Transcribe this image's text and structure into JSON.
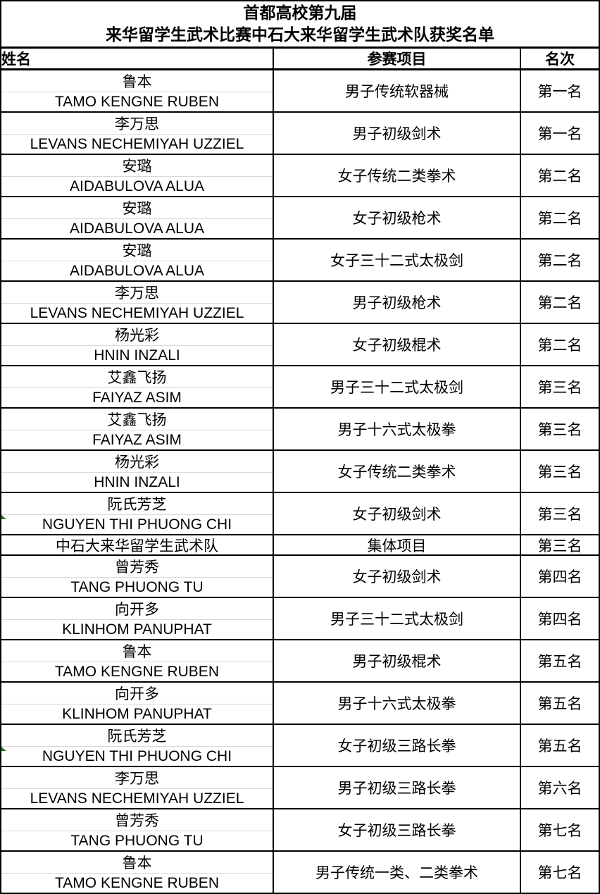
{
  "table": {
    "title_line1": "首都高校第九届",
    "title_line2": "来华留学生武术比赛中石大来华留学生武术队获奖名单",
    "columns": {
      "name": "姓名",
      "event": "参赛项目",
      "rank": "名次"
    },
    "rows": [
      {
        "name_cn": "鲁本",
        "name_en": "TAMO KENGNE RUBEN",
        "event": "男子传统软器械",
        "rank": "第一名"
      },
      {
        "name_cn": "李万思",
        "name_en": "LEVANS NECHEMIYAH UZZIEL",
        "event": "男子初级剑术",
        "rank": "第一名"
      },
      {
        "name_cn": "安璐",
        "name_en": "AIDABULOVA ALUA",
        "event": "女子传统二类拳术",
        "rank": "第二名"
      },
      {
        "name_cn": "安璐",
        "name_en": "AIDABULOVA ALUA",
        "event": "女子初级枪术",
        "rank": "第二名"
      },
      {
        "name_cn": "安璐",
        "name_en": "AIDABULOVA ALUA",
        "event": "女子三十二式太极剑",
        "rank": "第二名"
      },
      {
        "name_cn": "李万思",
        "name_en": "LEVANS NECHEMIYAH UZZIEL",
        "event": "男子初级枪术",
        "rank": "第二名"
      },
      {
        "name_cn": "杨光彩",
        "name_en": "HNIN INZALI",
        "event": "女子初级棍术",
        "rank": "第二名"
      },
      {
        "name_cn": "艾鑫飞扬",
        "name_en": "FAIYAZ ASIM",
        "event": "男子三十二式太极剑",
        "rank": "第三名"
      },
      {
        "name_cn": "艾鑫飞扬",
        "name_en": "FAIYAZ ASIM",
        "event": "男子十六式太极拳",
        "rank": "第三名"
      },
      {
        "name_cn": "杨光彩",
        "name_en": "HNIN INZALI",
        "event": "女子传统二类拳术",
        "rank": "第三名"
      },
      {
        "name_cn": "阮氏芳芝",
        "name_en": "NGUYEN THI PHUONG CHI",
        "event": "女子初级剑术",
        "rank": "第三名",
        "error_indicator": true
      },
      {
        "name_cn": "中石大来华留学生武术队",
        "name_en": "",
        "event": "集体项目",
        "rank": "第三名",
        "single": true
      },
      {
        "name_cn": "曾芳秀",
        "name_en": "TANG PHUONG TU",
        "event": "女子初级剑术",
        "rank": "第四名"
      },
      {
        "name_cn": "向开多",
        "name_en": "KLINHOM PANUPHAT",
        "event": "男子三十二式太极剑",
        "rank": "第四名"
      },
      {
        "name_cn": "鲁本",
        "name_en": "TAMO KENGNE RUBEN",
        "event": "男子初级棍术",
        "rank": "第五名"
      },
      {
        "name_cn": "向开多",
        "name_en": "KLINHOM PANUPHAT",
        "event": "男子十六式太极拳",
        "rank": "第五名"
      },
      {
        "name_cn": "阮氏芳芝",
        "name_en": "NGUYEN THI PHUONG CHI",
        "event": "女子初级三路长拳",
        "rank": "第五名",
        "error_indicator": true
      },
      {
        "name_cn": "李万思",
        "name_en": "LEVANS NECHEMIYAH UZZIEL",
        "event": "男子初级三路长拳",
        "rank": "第六名"
      },
      {
        "name_cn": "曾芳秀",
        "name_en": "TANG PHUONG TU",
        "event": "女子初级三路长拳",
        "rank": "第七名"
      },
      {
        "name_cn": "鲁本",
        "name_en": "TAMO KENGNE RUBEN",
        "event": "男子传统一类、二类拳术",
        "rank": "第七名"
      }
    ]
  },
  "colors": {
    "border": "#000000",
    "faint_gridline": "#d9d9d9",
    "error_indicator_green": "#1d7d1d",
    "background": "#ffffff",
    "text": "#000000"
  }
}
